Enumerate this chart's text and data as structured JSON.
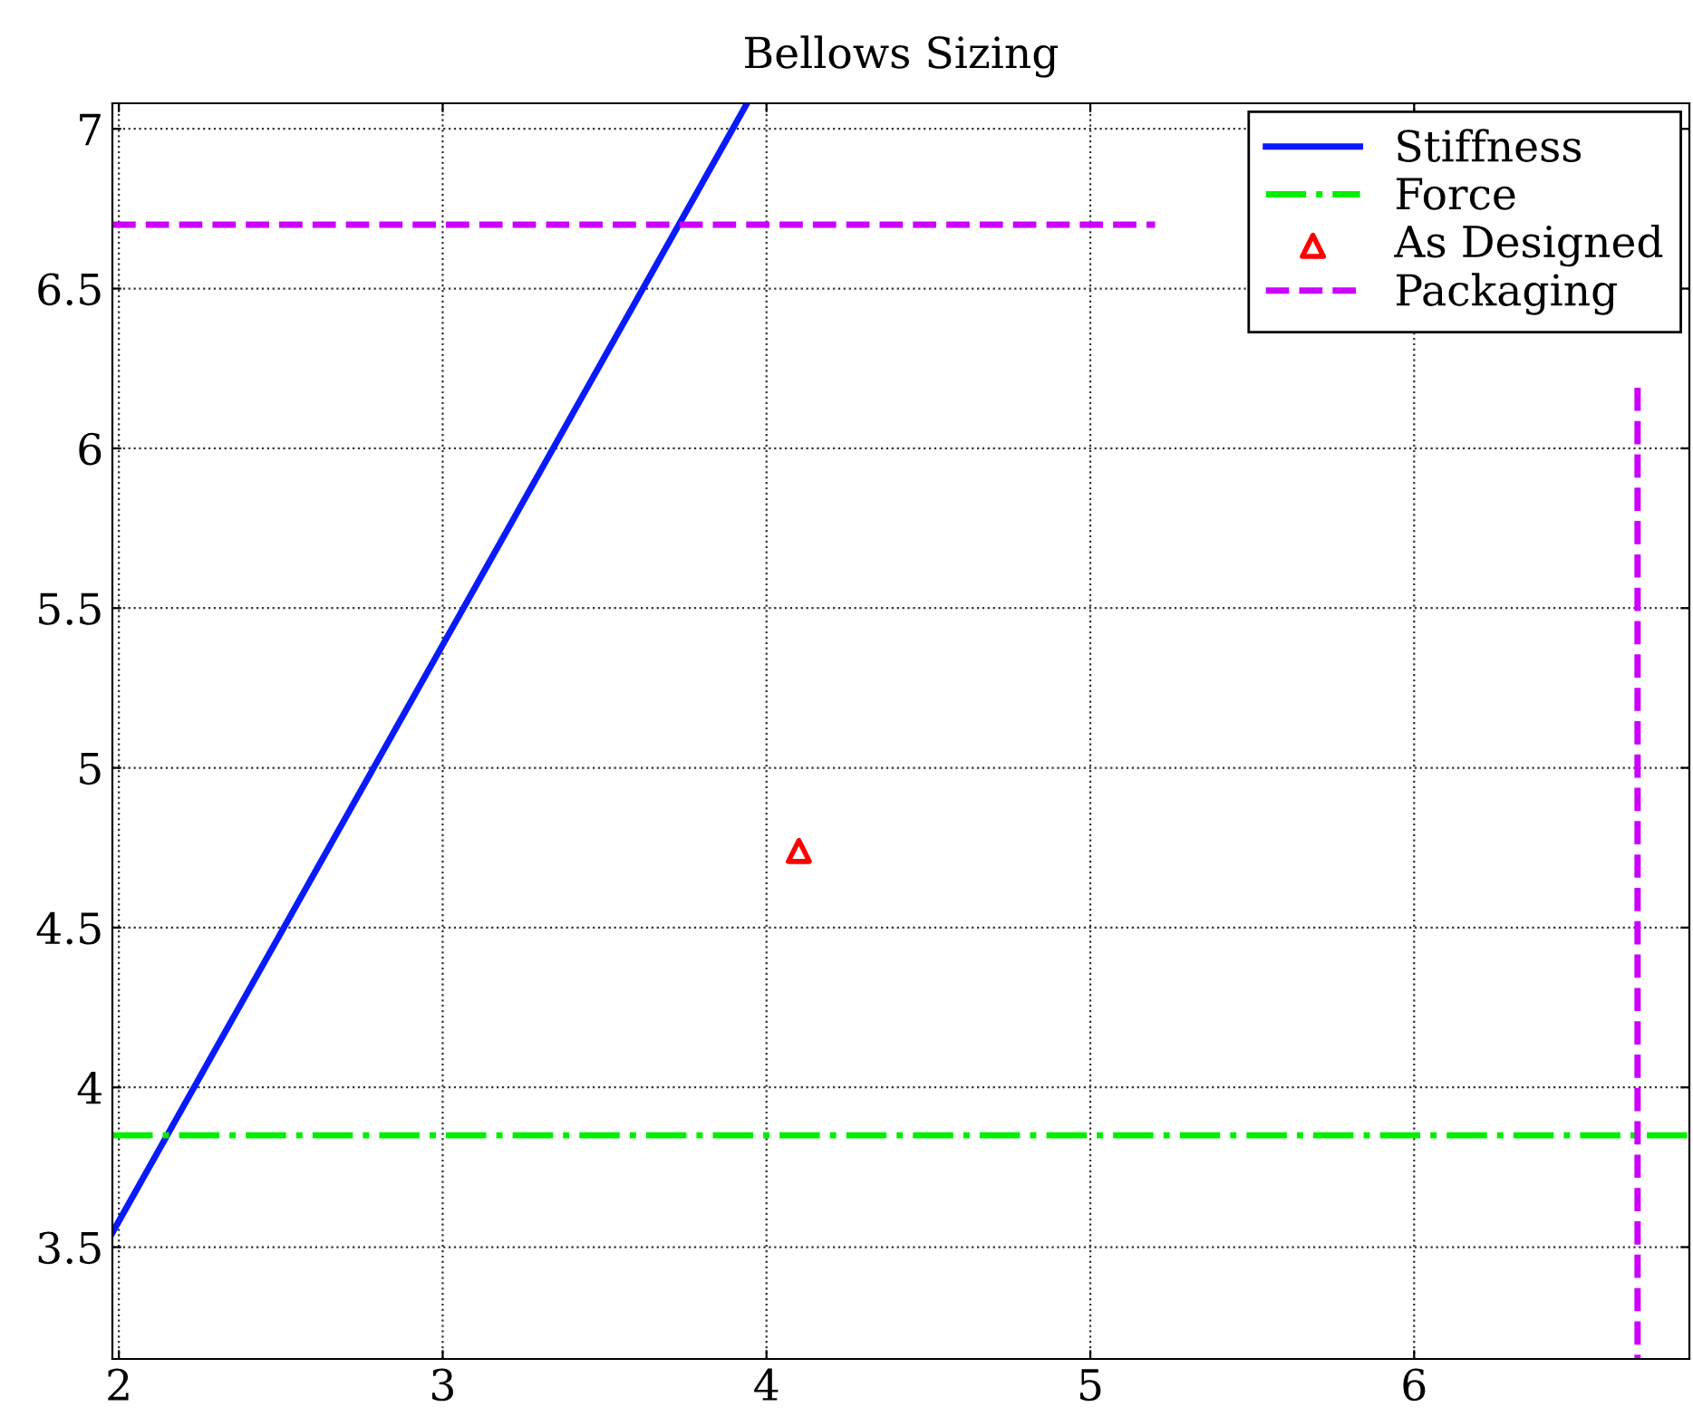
{
  "chart_data": {
    "type": "line",
    "title": "Bellows Sizing",
    "xlim": [
      1.98,
      6.85
    ],
    "ylim": [
      3.15,
      7.08
    ],
    "xticks": [
      2,
      3,
      4,
      5,
      6
    ],
    "yticks": [
      3.5,
      4,
      4.5,
      5,
      5.5,
      6,
      6.5,
      7
    ],
    "grid": true,
    "legend": "top right",
    "series": [
      {
        "name": "Stiffness",
        "color": "#0a1aff",
        "line_style": "solid",
        "x": [
          1.98,
          3.94
        ],
        "values": [
          3.545,
          7.08
        ]
      },
      {
        "name": "Force",
        "color": "#00ee00",
        "line_style": "dashdot",
        "x": [
          1.98,
          6.85
        ],
        "values": [
          3.85,
          3.85
        ]
      },
      {
        "name": "As Designed",
        "type": "scatter",
        "color": "#ff0000",
        "marker": "triangle",
        "x": [
          4.1
        ],
        "values": [
          4.74
        ]
      },
      {
        "name": "Packaging",
        "color": "#cc00ff",
        "line_style": "dashed",
        "x": [
          1.98,
          5.2,
          null,
          6.69,
          6.69
        ],
        "values": [
          6.7,
          6.7,
          null,
          6.19,
          3.15
        ]
      }
    ]
  }
}
